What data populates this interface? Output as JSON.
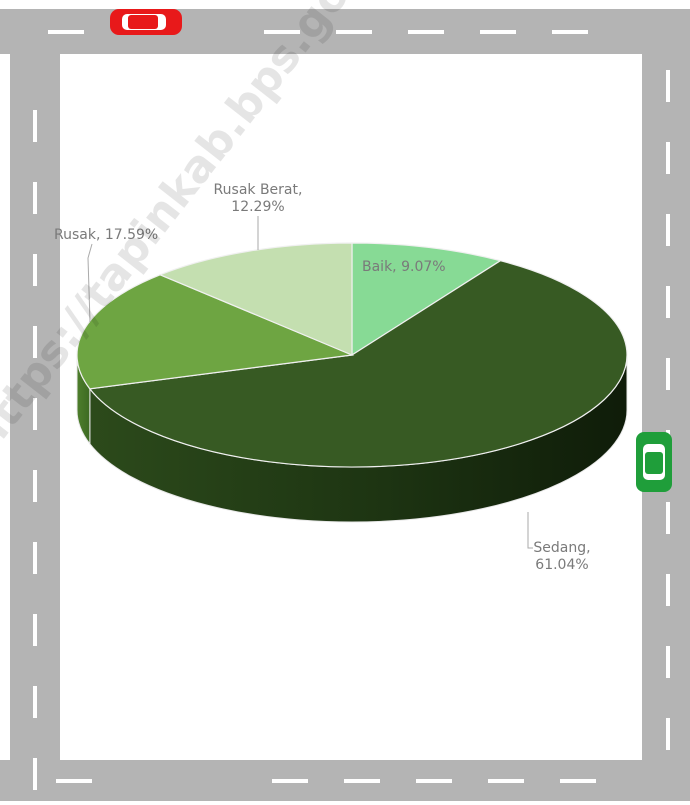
{
  "chart_data": {
    "type": "pie",
    "style": "3d",
    "slices": [
      {
        "label": "Baik",
        "value": 9.07,
        "display": "Baik, 9.07%",
        "color": "#87da95"
      },
      {
        "label": "Sedang",
        "value": 61.04,
        "display_line1": "Sedang,",
        "display_line2": "61.04%",
        "color": "#375a23"
      },
      {
        "label": "Rusak",
        "value": 17.59,
        "display": "Rusak, 17.59%",
        "color": "#6ea542"
      },
      {
        "label": "Rusak Berat",
        "value": 12.29,
        "display_line1": "Rusak Berat,",
        "display_line2": "12.29%",
        "color": "#c4dfb0"
      }
    ],
    "label_color": "#7a7a7a"
  },
  "decor": {
    "road_color": "#b4b4b4",
    "dash_color": "#ffffff",
    "red_car_color": "#e8191a",
    "green_car_color": "#1f9e3a"
  },
  "watermark": "https://tapinkab.bps.go.id"
}
